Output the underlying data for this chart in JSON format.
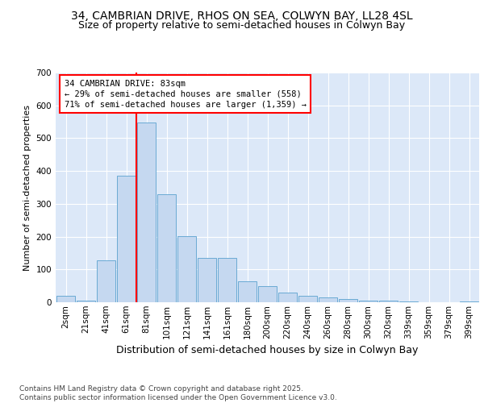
{
  "title1": "34, CAMBRIAN DRIVE, RHOS ON SEA, COLWYN BAY, LL28 4SL",
  "title2": "Size of property relative to semi-detached houses in Colwyn Bay",
  "xlabel": "Distribution of semi-detached houses by size in Colwyn Bay",
  "ylabel": "Number of semi-detached properties",
  "categories": [
    "2sqm",
    "21sqm",
    "41sqm",
    "61sqm",
    "81sqm",
    "101sqm",
    "121sqm",
    "141sqm",
    "161sqm",
    "180sqm",
    "200sqm",
    "220sqm",
    "240sqm",
    "260sqm",
    "280sqm",
    "300sqm",
    "320sqm",
    "339sqm",
    "359sqm",
    "379sqm",
    "399sqm"
  ],
  "bar_heights": [
    20,
    5,
    128,
    385,
    548,
    328,
    202,
    135,
    135,
    65,
    48,
    30,
    20,
    15,
    10,
    5,
    4,
    3,
    1,
    1,
    2
  ],
  "bar_color": "#c5d8f0",
  "bar_edge_color": "#6aaad4",
  "vline_color": "red",
  "annotation_text": "34 CAMBRIAN DRIVE: 83sqm\n← 29% of semi-detached houses are smaller (558)\n71% of semi-detached houses are larger (1,359) →",
  "annotation_box_color": "white",
  "annotation_box_edge_color": "red",
  "footnote": "Contains HM Land Registry data © Crown copyright and database right 2025.\nContains public sector information licensed under the Open Government Licence v3.0.",
  "ylim": [
    0,
    700
  ],
  "yticks": [
    0,
    100,
    200,
    300,
    400,
    500,
    600,
    700
  ],
  "background_color": "#dce8f8",
  "fig_background": "#ffffff",
  "title1_fontsize": 10,
  "title2_fontsize": 9,
  "xlabel_fontsize": 9,
  "ylabel_fontsize": 8,
  "tick_fontsize": 7.5,
  "annotation_fontsize": 7.5,
  "footnote_fontsize": 6.5
}
